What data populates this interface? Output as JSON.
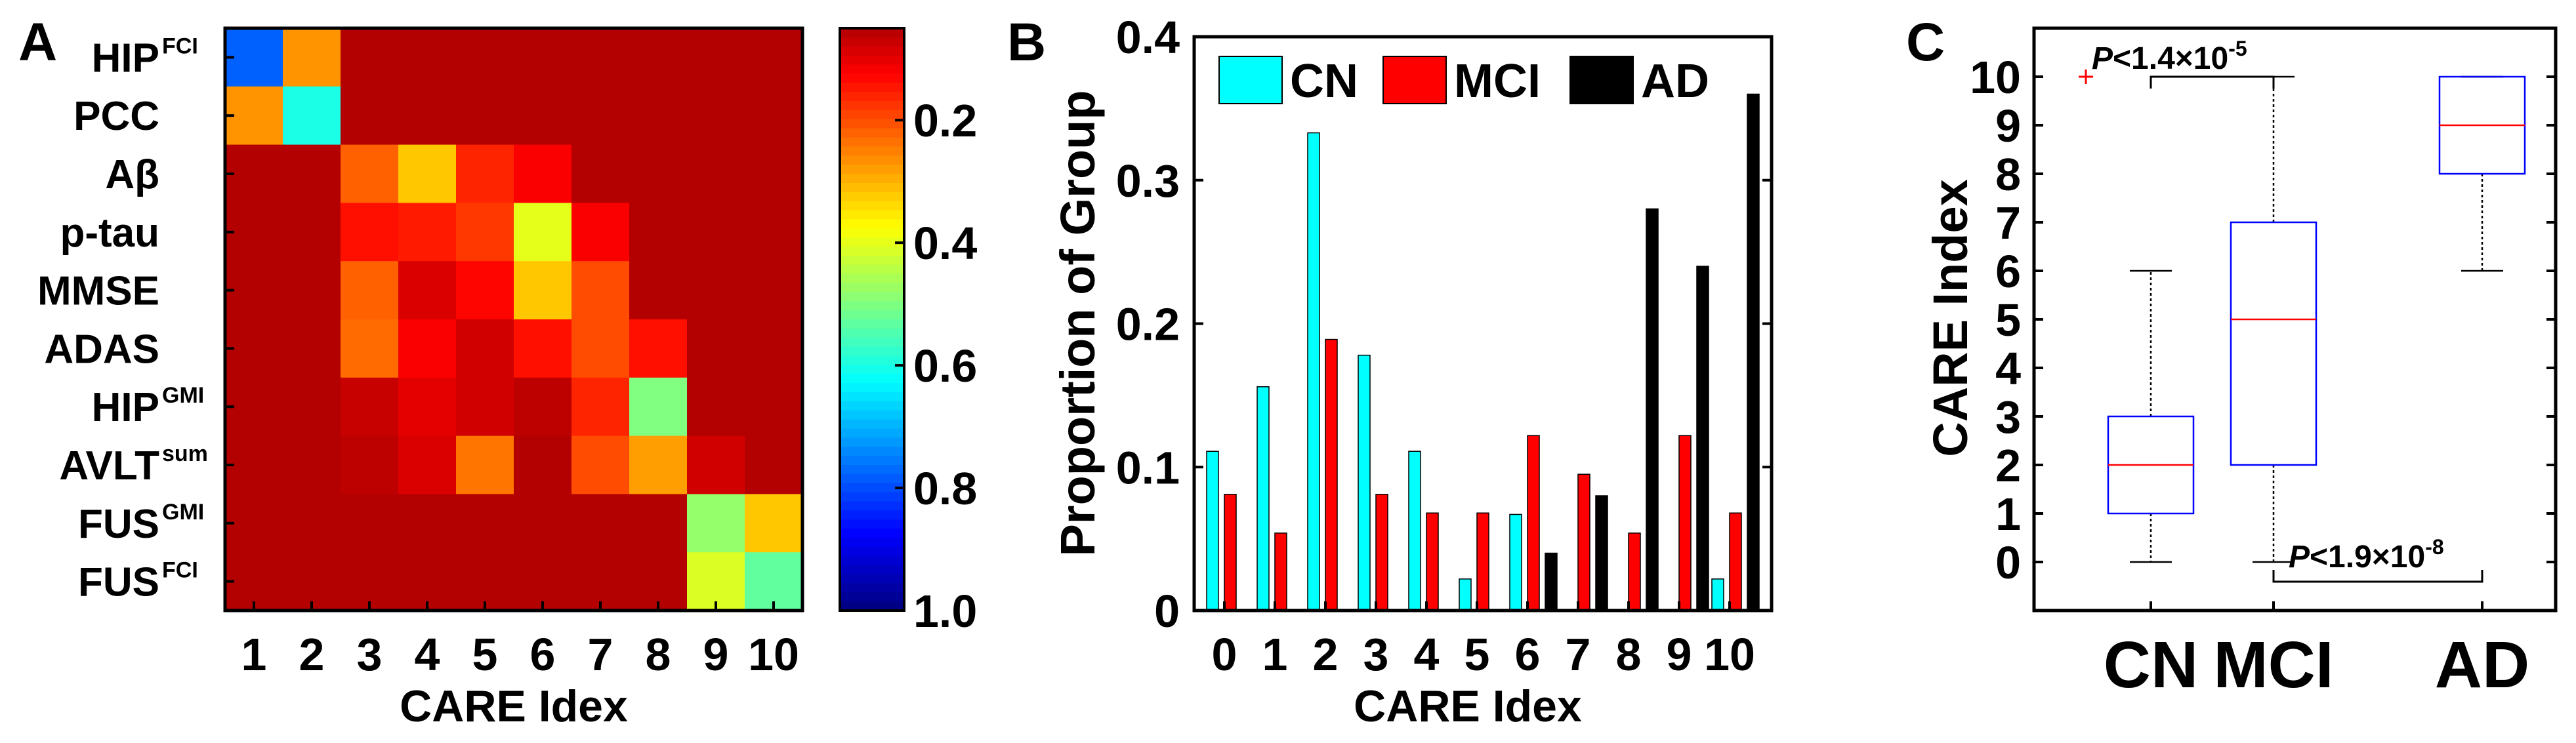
{
  "panels": {
    "a": "A",
    "b": "B",
    "c": "C"
  },
  "chart_data": [
    {
      "type": "heatmap",
      "panel": "A",
      "xlabel": "CARE Idex",
      "x_ticks": [
        "1",
        "2",
        "3",
        "4",
        "5",
        "6",
        "7",
        "8",
        "9",
        "10"
      ],
      "rows": [
        {
          "label": "HIP",
          "sup": "FCI"
        },
        {
          "label": "PCC",
          "sup": ""
        },
        {
          "label": "Aβ",
          "sup": ""
        },
        {
          "label": "p-tau",
          "sup": ""
        },
        {
          "label": "MMSE",
          "sup": ""
        },
        {
          "label": "ADAS",
          "sup": ""
        },
        {
          "label": "HIP",
          "sup": "GMI"
        },
        {
          "label": "AVLT",
          "sup": "sum"
        },
        {
          "label": "FUS",
          "sup": "GMI"
        },
        {
          "label": "FUS",
          "sup": "FCI"
        }
      ],
      "values": [
        [
          0.78,
          0.27,
          0.05,
          0.05,
          0.05,
          0.05,
          0.05,
          0.05,
          0.05,
          0.05
        ],
        [
          0.27,
          0.6,
          0.05,
          0.05,
          0.05,
          0.05,
          0.05,
          0.05,
          0.05,
          0.05
        ],
        [
          0.05,
          0.05,
          0.22,
          0.32,
          0.16,
          0.12,
          0.05,
          0.05,
          0.05,
          0.05
        ],
        [
          0.05,
          0.05,
          0.14,
          0.15,
          0.18,
          0.4,
          0.12,
          0.05,
          0.05,
          0.05
        ],
        [
          0.05,
          0.05,
          0.22,
          0.09,
          0.13,
          0.32,
          0.2,
          0.05,
          0.05,
          0.05
        ],
        [
          0.05,
          0.05,
          0.23,
          0.12,
          0.08,
          0.14,
          0.2,
          0.14,
          0.05,
          0.05
        ],
        [
          0.05,
          0.05,
          0.07,
          0.1,
          0.08,
          0.06,
          0.16,
          0.5,
          0.05,
          0.05
        ],
        [
          0.05,
          0.05,
          0.06,
          0.09,
          0.24,
          0.05,
          0.2,
          0.28,
          0.08,
          0.05
        ],
        [
          0.05,
          0.05,
          0.05,
          0.05,
          0.05,
          0.05,
          0.05,
          0.05,
          0.48,
          0.32
        ],
        [
          0.05,
          0.05,
          0.05,
          0.05,
          0.05,
          0.05,
          0.05,
          0.05,
          0.41,
          0.53
        ]
      ],
      "colorbar": {
        "ticks": [
          "0.2",
          "0.4",
          "0.6",
          "0.8",
          "1.0"
        ],
        "tick_values": [
          0.2,
          0.4,
          0.6,
          0.8,
          1.0
        ],
        "range": [
          0.05,
          1.0
        ],
        "colormap": "jet",
        "orientation": "reversed (0 at top, 1.0 at bottom)"
      }
    },
    {
      "type": "bar",
      "panel": "B",
      "xlabel": "CARE Idex",
      "ylabel": "Proportion of Group",
      "categories": [
        "0",
        "1",
        "2",
        "3",
        "4",
        "5",
        "6",
        "7",
        "8",
        "9",
        "10"
      ],
      "ylim": [
        0,
        0.4
      ],
      "y_ticks": [
        "0",
        "0.1",
        "0.2",
        "0.3",
        "0.4"
      ],
      "y_tick_values": [
        0,
        0.1,
        0.2,
        0.3,
        0.4
      ],
      "legend_position": "top",
      "series": [
        {
          "name": "CN",
          "color": "#00ffff",
          "values": [
            0.111,
            0.156,
            0.333,
            0.178,
            0.111,
            0.022,
            0.067,
            0,
            0,
            0,
            0.022
          ]
        },
        {
          "name": "MCI",
          "color": "#ff0000",
          "values": [
            0.081,
            0.054,
            0.189,
            0.081,
            0.068,
            0.068,
            0.122,
            0.095,
            0.054,
            0.122,
            0.068
          ]
        },
        {
          "name": "AD",
          "color": "#000000",
          "values": [
            0,
            0,
            0,
            0,
            0,
            0,
            0.04,
            0.08,
            0.28,
            0.24,
            0.36
          ]
        }
      ]
    },
    {
      "type": "box",
      "panel": "C",
      "ylabel": "CARE Index",
      "categories": [
        "CN",
        "MCI",
        "AD"
      ],
      "ylim": [
        -1,
        11
      ],
      "y_ticks": [
        "0",
        "1",
        "2",
        "3",
        "4",
        "5",
        "6",
        "7",
        "8",
        "9",
        "10"
      ],
      "boxes": [
        {
          "name": "CN",
          "min": 0,
          "q1": 1,
          "median": 2,
          "q3": 3,
          "max": 6,
          "outliers": [
            10
          ]
        },
        {
          "name": "MCI",
          "min": 0,
          "q1": 2,
          "median": 5,
          "q3": 7,
          "max": 10,
          "outliers": []
        },
        {
          "name": "AD",
          "min": 6,
          "q1": 8,
          "median": 9,
          "q3": 10,
          "max": 10,
          "outliers": []
        }
      ],
      "annotations": [
        {
          "p_label": "P",
          "text": "<1.4×10",
          "exp": "-5",
          "between": [
            "CN",
            "MCI"
          ]
        },
        {
          "p_label": "P",
          "text": "<1.9×10",
          "exp": "-8",
          "between": [
            "MCI",
            "AD"
          ]
        }
      ],
      "colors": {
        "box": "#0000ff",
        "median": "#ff0000",
        "outlier": "#ff0000"
      }
    }
  ]
}
